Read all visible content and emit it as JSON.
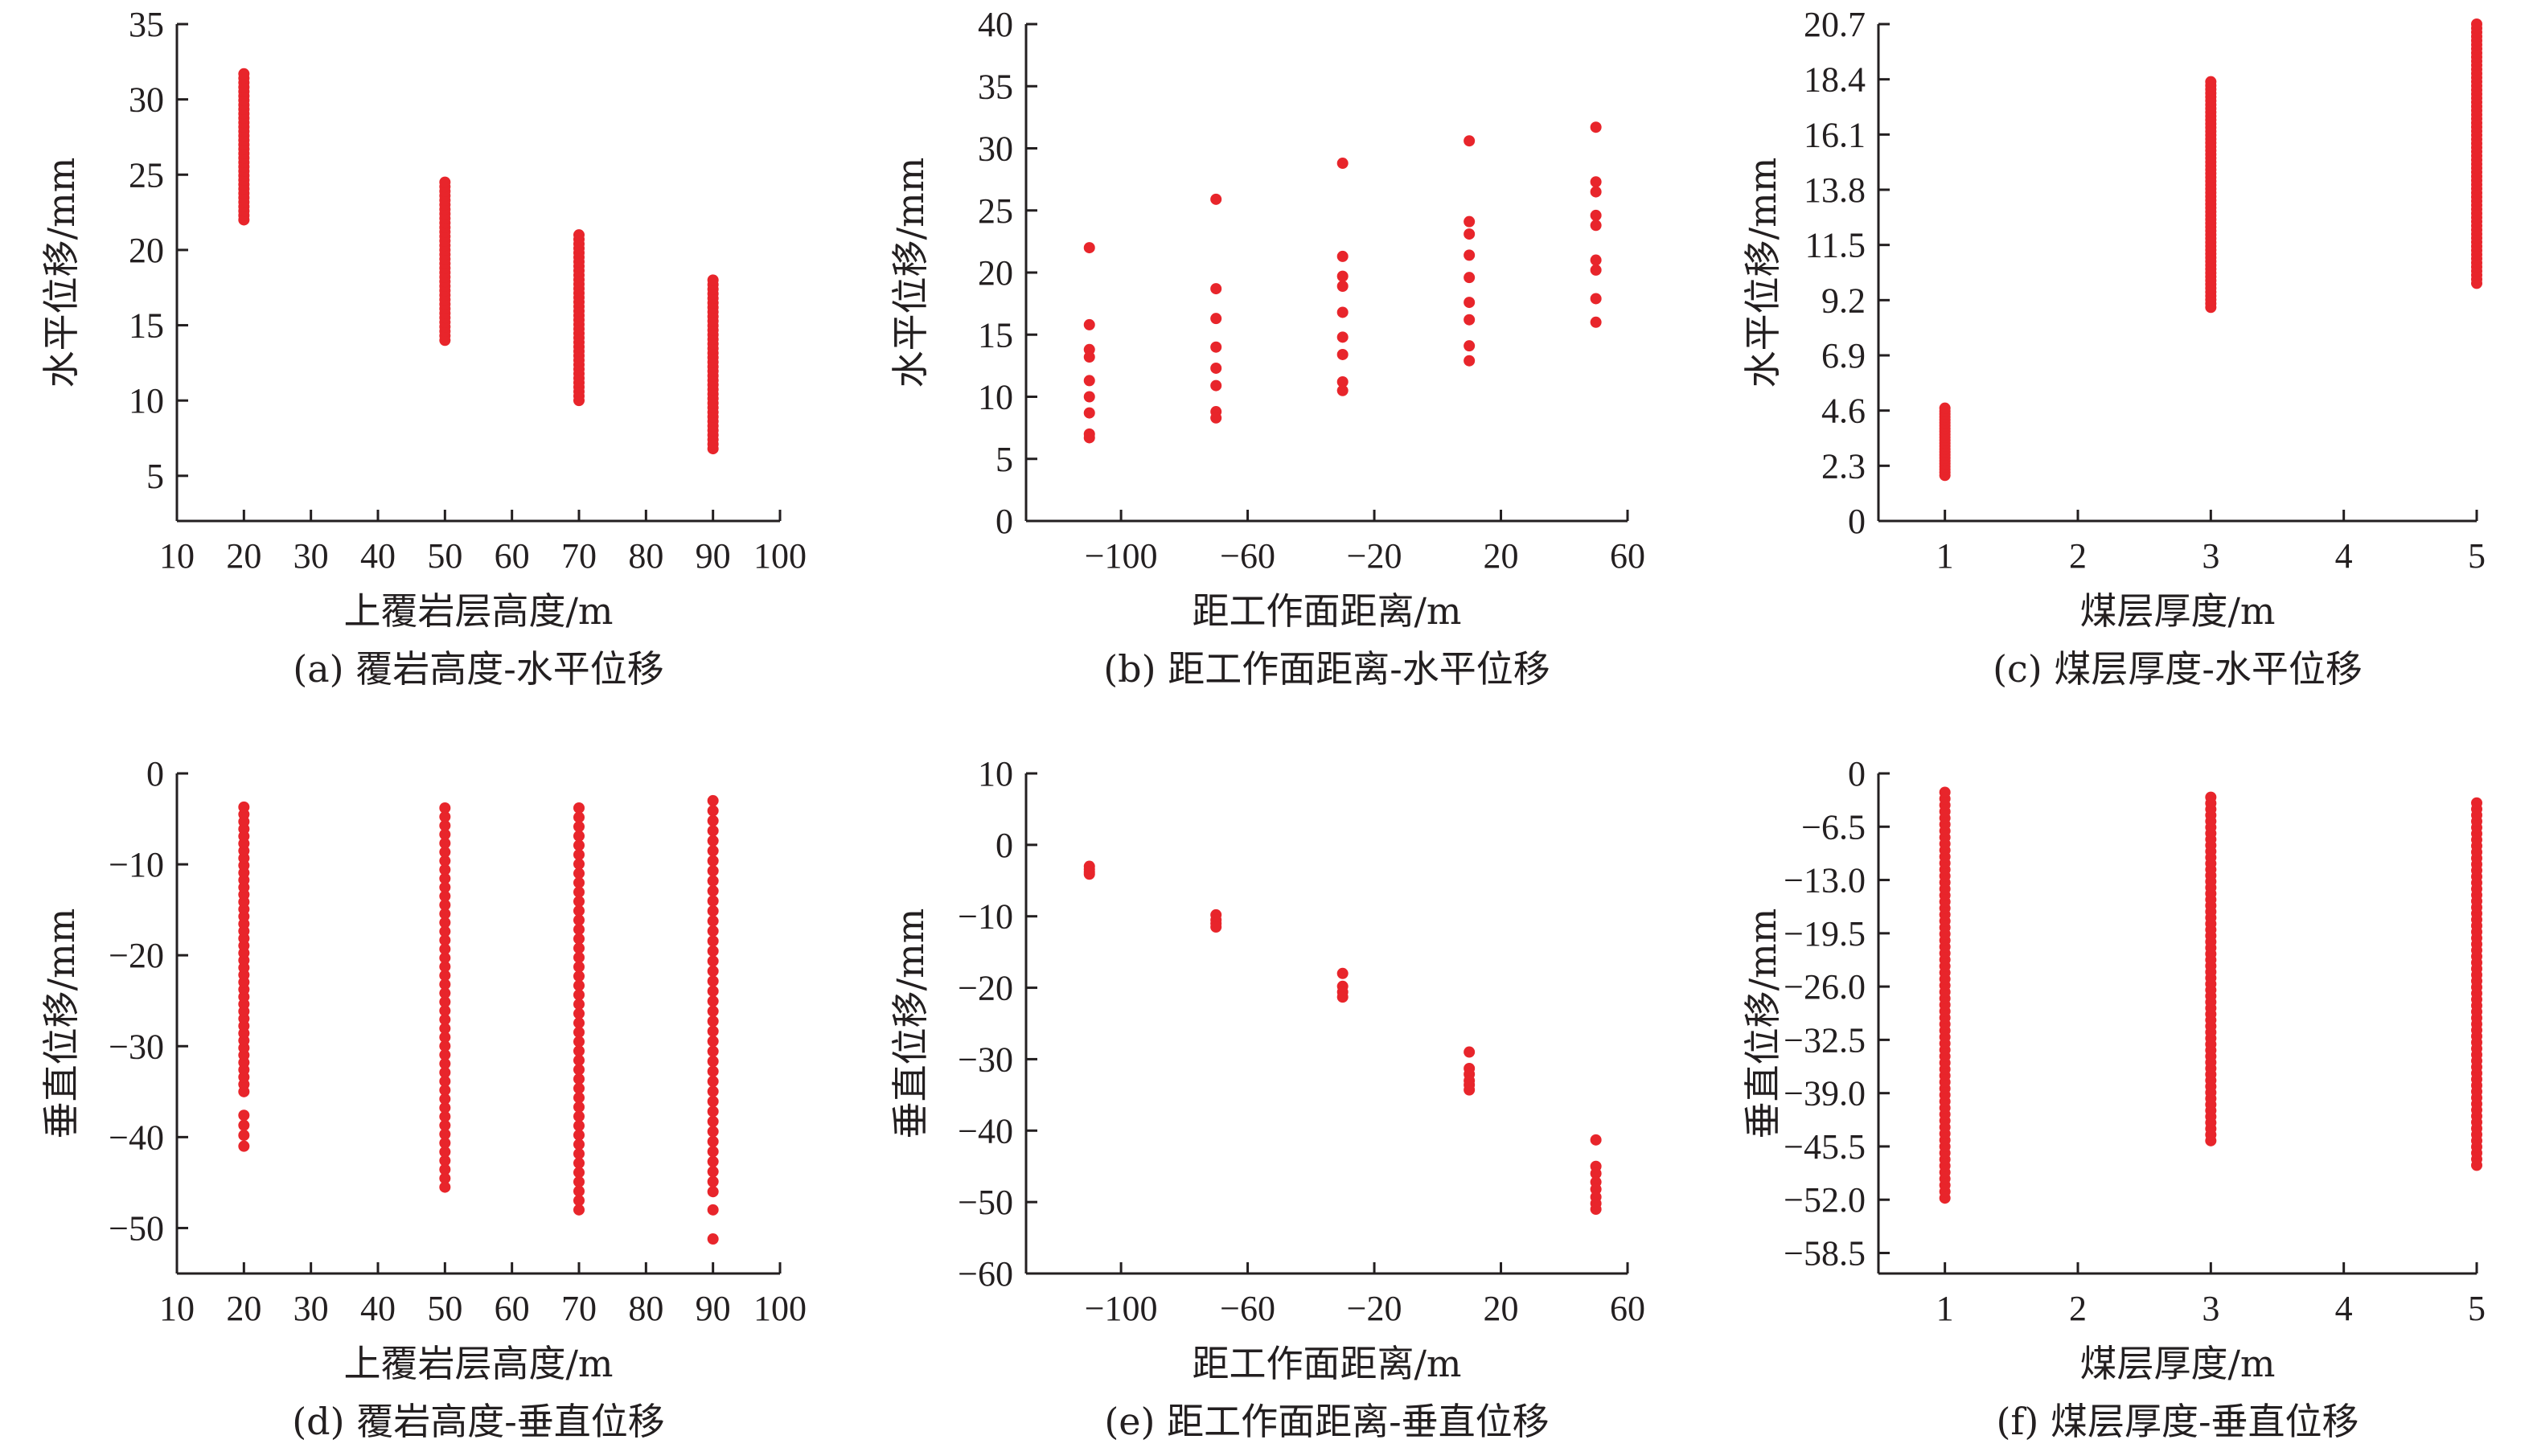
{
  "chart_data": [
    {
      "type": "scatter",
      "caption": "(a) 覆岩高度-水平位移",
      "xlabel": "上覆岩层高度/m",
      "ylabel": "水平位移/mm",
      "xlim": [
        10,
        100
      ],
      "ylim": [
        2,
        35
      ],
      "xticks": [
        10,
        20,
        30,
        40,
        50,
        60,
        70,
        80,
        90,
        100
      ],
      "yticks": [
        5,
        10,
        15,
        20,
        25,
        30,
        35
      ],
      "xtick_labels": [
        "10",
        "20",
        "30",
        "40",
        "50",
        "60",
        "70",
        "80",
        "90",
        "100"
      ],
      "ytick_labels": [
        "5",
        "10",
        "15",
        "20",
        "25",
        "30",
        "35"
      ],
      "color": "#e8252b",
      "series": [
        {
          "x": 20,
          "y_min": 22.0,
          "y_max": 31.7,
          "n": 34
        },
        {
          "x": 50,
          "y_min": 14.0,
          "y_max": 24.5,
          "n": 36
        },
        {
          "x": 70,
          "y_min": 10.0,
          "y_max": 21.0,
          "n": 38
        },
        {
          "x": 90,
          "y_min": 6.8,
          "y_max": 18.0,
          "n": 38
        }
      ]
    },
    {
      "type": "scatter",
      "caption": "(b) 距工作面距离-水平位移",
      "xlabel": "距工作面距离/m",
      "ylabel": "水平位移/mm",
      "xlim": [
        -130,
        60
      ],
      "ylim": [
        0,
        40
      ],
      "xticks": [
        -100,
        -60,
        -20,
        20,
        60
      ],
      "yticks": [
        0,
        5,
        10,
        15,
        20,
        25,
        30,
        35,
        40
      ],
      "xtick_labels": [
        "−100",
        "−60",
        "−20",
        "20",
        "60"
      ],
      "ytick_labels": [
        "0",
        "5",
        "10",
        "15",
        "20",
        "25",
        "30",
        "35",
        "40"
      ],
      "color": "#e8252b",
      "points": [
        {
          "x": -110,
          "ys": [
            22.0,
            15.8,
            13.8,
            13.2,
            11.3,
            10.0,
            8.7,
            7.0,
            6.7
          ]
        },
        {
          "x": -70,
          "ys": [
            25.9,
            18.7,
            16.3,
            14.0,
            12.3,
            10.9,
            8.8,
            8.3
          ]
        },
        {
          "x": -30,
          "ys": [
            28.8,
            21.3,
            19.7,
            18.9,
            16.8,
            14.8,
            13.4,
            11.2,
            10.5
          ]
        },
        {
          "x": 10,
          "ys": [
            30.6,
            24.1,
            23.1,
            21.4,
            19.6,
            17.6,
            16.2,
            14.1,
            12.9
          ]
        },
        {
          "x": 50,
          "ys": [
            31.7,
            27.3,
            26.5,
            24.6,
            23.8,
            21.0,
            20.2,
            17.9,
            16.0
          ]
        }
      ]
    },
    {
      "type": "scatter",
      "caption": "(c) 煤层厚度-水平位移",
      "xlabel": "煤层厚度/m",
      "ylabel": "水平位移/mm",
      "xlim": [
        0.5,
        5
      ],
      "ylim": [
        0,
        20.7
      ],
      "xticks": [
        1,
        2,
        3,
        4,
        5
      ],
      "yticks": [
        0,
        2.3,
        4.6,
        6.9,
        9.2,
        11.5,
        13.8,
        16.1,
        18.4,
        20.7
      ],
      "xtick_labels": [
        "1",
        "2",
        "3",
        "4",
        "5"
      ],
      "ytick_labels": [
        "0",
        "2.3",
        "4.6",
        "6.9",
        "9.2",
        "11.5",
        "13.8",
        "16.1",
        "18.4",
        "20.7"
      ],
      "color": "#e8252b",
      "series": [
        {
          "x": 1,
          "y_min": 1.9,
          "y_max": 4.7,
          "n": 24
        },
        {
          "x": 3,
          "y_min": 8.9,
          "y_max": 18.3,
          "n": 60
        },
        {
          "x": 5,
          "y_min": 9.9,
          "y_max": 20.7,
          "n": 64
        }
      ]
    },
    {
      "type": "scatter",
      "caption": "(d) 覆岩高度-垂直位移",
      "xlabel": "上覆岩层高度/m",
      "ylabel": "垂直位移/mm",
      "xlim": [
        10,
        100
      ],
      "ylim": [
        -55,
        0
      ],
      "xticks": [
        10,
        20,
        30,
        40,
        50,
        60,
        70,
        80,
        90,
        100
      ],
      "yticks": [
        0,
        -10,
        -20,
        -30,
        -40,
        -50
      ],
      "xtick_labels": [
        "10",
        "20",
        "30",
        "40",
        "50",
        "60",
        "70",
        "80",
        "90",
        "100"
      ],
      "ytick_labels": [
        "0",
        "−10",
        "−20",
        "−30",
        "−40",
        "−50"
      ],
      "color": "#e8252b",
      "series": [
        {
          "x": 20,
          "y_min": -35.0,
          "y_max": -3.7,
          "n": 40,
          "extra": [
            -37.6,
            -38.7,
            -39.8,
            -41.0
          ]
        },
        {
          "x": 50,
          "y_min": -45.5,
          "y_max": -3.8,
          "n": 44
        },
        {
          "x": 70,
          "y_min": -48.0,
          "y_max": -3.8,
          "n": 44
        },
        {
          "x": 90,
          "y_min": -46.0,
          "y_max": -3.0,
          "n": 40,
          "extra": [
            -48.0,
            -51.2
          ]
        }
      ]
    },
    {
      "type": "scatter",
      "caption": "(e) 距工作面距离-垂直位移",
      "xlabel": "距工作面距离/m",
      "ylabel": "垂直位移/mm",
      "xlim": [
        -130,
        60
      ],
      "ylim": [
        -60,
        10
      ],
      "xticks": [
        -100,
        -60,
        -20,
        20,
        60
      ],
      "yticks": [
        10,
        0,
        -10,
        -20,
        -30,
        -40,
        -50,
        -60
      ],
      "xtick_labels": [
        "−100",
        "−60",
        "−20",
        "20",
        "60"
      ],
      "ytick_labels": [
        "10",
        "0",
        "−10",
        "−20",
        "−30",
        "−40",
        "−50",
        "−60"
      ],
      "color": "#e8252b",
      "points": [
        {
          "x": -110,
          "ys": [
            -3.0,
            -3.4,
            -3.8,
            -4.1
          ]
        },
        {
          "x": -70,
          "ys": [
            -9.8,
            -10.5,
            -11.0,
            -11.5
          ]
        },
        {
          "x": -30,
          "ys": [
            -18.0,
            -19.8,
            -20.6,
            -21.3
          ]
        },
        {
          "x": 10,
          "ys": [
            -29.0,
            -31.3,
            -32.1,
            -33.0,
            -33.6,
            -34.3
          ]
        },
        {
          "x": 50,
          "ys": [
            -41.3,
            -45.0,
            -46.0,
            -47.2,
            -48.2,
            -49.3,
            -50.2,
            -51.0
          ]
        }
      ]
    },
    {
      "type": "scatter",
      "caption": "(f) 煤层厚度-垂直位移",
      "xlabel": "煤层厚度/m",
      "ylabel": "垂直位移/mm",
      "xlim": [
        0.5,
        5
      ],
      "ylim": [
        -61,
        0
      ],
      "xticks": [
        1,
        2,
        3,
        4,
        5
      ],
      "yticks": [
        0,
        -6.5,
        -13.0,
        -19.5,
        -26.0,
        -32.5,
        -39.0,
        -45.5,
        -52.0,
        -58.5
      ],
      "xtick_labels": [
        "1",
        "2",
        "3",
        "4",
        "5"
      ],
      "ytick_labels": [
        "0",
        "−6.5",
        "−13.0",
        "−19.5",
        "−26.0",
        "−32.5",
        "−39.0",
        "−45.5",
        "−52.0",
        "−58.5"
      ],
      "color": "#e8252b",
      "series": [
        {
          "x": 1,
          "y_min": -51.8,
          "y_max": -2.3,
          "n": 64
        },
        {
          "x": 3,
          "y_min": -44.8,
          "y_max": -2.9,
          "n": 58
        },
        {
          "x": 5,
          "y_min": -47.8,
          "y_max": -3.6,
          "n": 60
        }
      ]
    }
  ]
}
